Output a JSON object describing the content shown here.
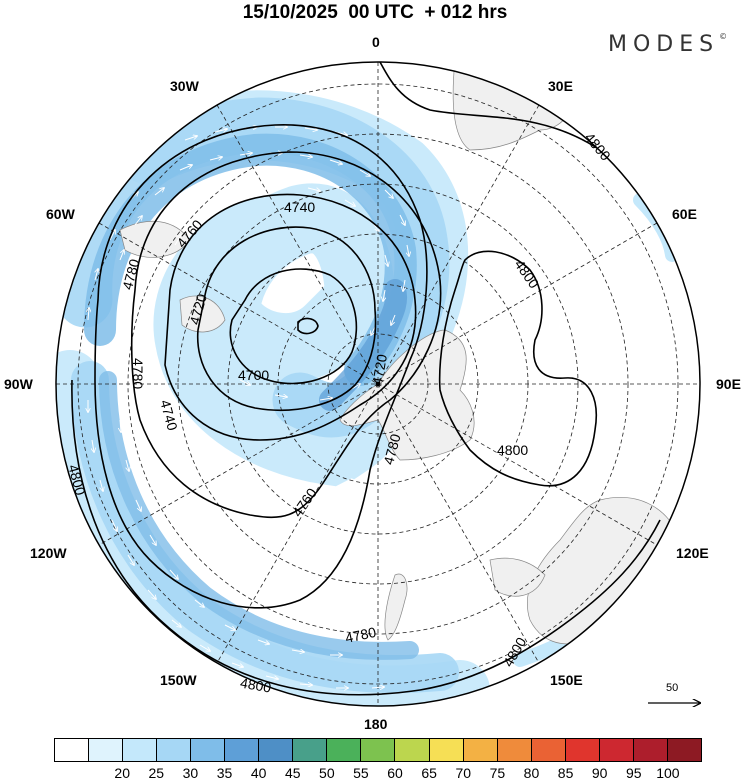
{
  "title": "15/10/2025  00 UTC  + 012 hrs",
  "brand": "MODES",
  "brand_mark": "©",
  "longitude_labels": {
    "lon_0": "0",
    "lon_30e": "30E",
    "lon_60e": "60E",
    "lon_90e": "90E",
    "lon_120e": "120E",
    "lon_150e": "150E",
    "lon_180": "180",
    "lon_150w": "150W",
    "lon_120w": "120W",
    "lon_90w": "90W",
    "lon_60w": "60W",
    "lon_30w": "30W"
  },
  "contour_labels": {
    "c4700": "4700",
    "c4720a": "4720",
    "c4720b": "4720",
    "c4740a": "4740",
    "c4740b": "4740",
    "c4760a": "4760",
    "c4760b": "4760",
    "c4780a": "4780",
    "c4780b": "4780",
    "c4780c": "4780",
    "c4780d": "4780",
    "c4800a": "4800",
    "c4800b": "4800",
    "c4800c": "4800",
    "c4800d": "4800",
    "c4800e": "4800",
    "c4800f": "4800"
  },
  "reference_vector": {
    "value": "50"
  },
  "colorbar": {
    "colors": [
      "#ffffff",
      "#dff3fd",
      "#c4e8fb",
      "#a6d7f5",
      "#7fbde9",
      "#5e9fd7",
      "#4e8fc6",
      "#48a08a",
      "#4bb15a",
      "#7dc24f",
      "#bcd64e",
      "#f6df55",
      "#f3b144",
      "#ef8b3b",
      "#ea6234",
      "#e0352d",
      "#cd2830",
      "#ad1e2c",
      "#8d1a23"
    ],
    "ticks": [
      "20",
      "25",
      "30",
      "35",
      "40",
      "45",
      "50",
      "55",
      "60",
      "65",
      "70",
      "75",
      "80",
      "85",
      "90",
      "95",
      "100"
    ]
  }
}
